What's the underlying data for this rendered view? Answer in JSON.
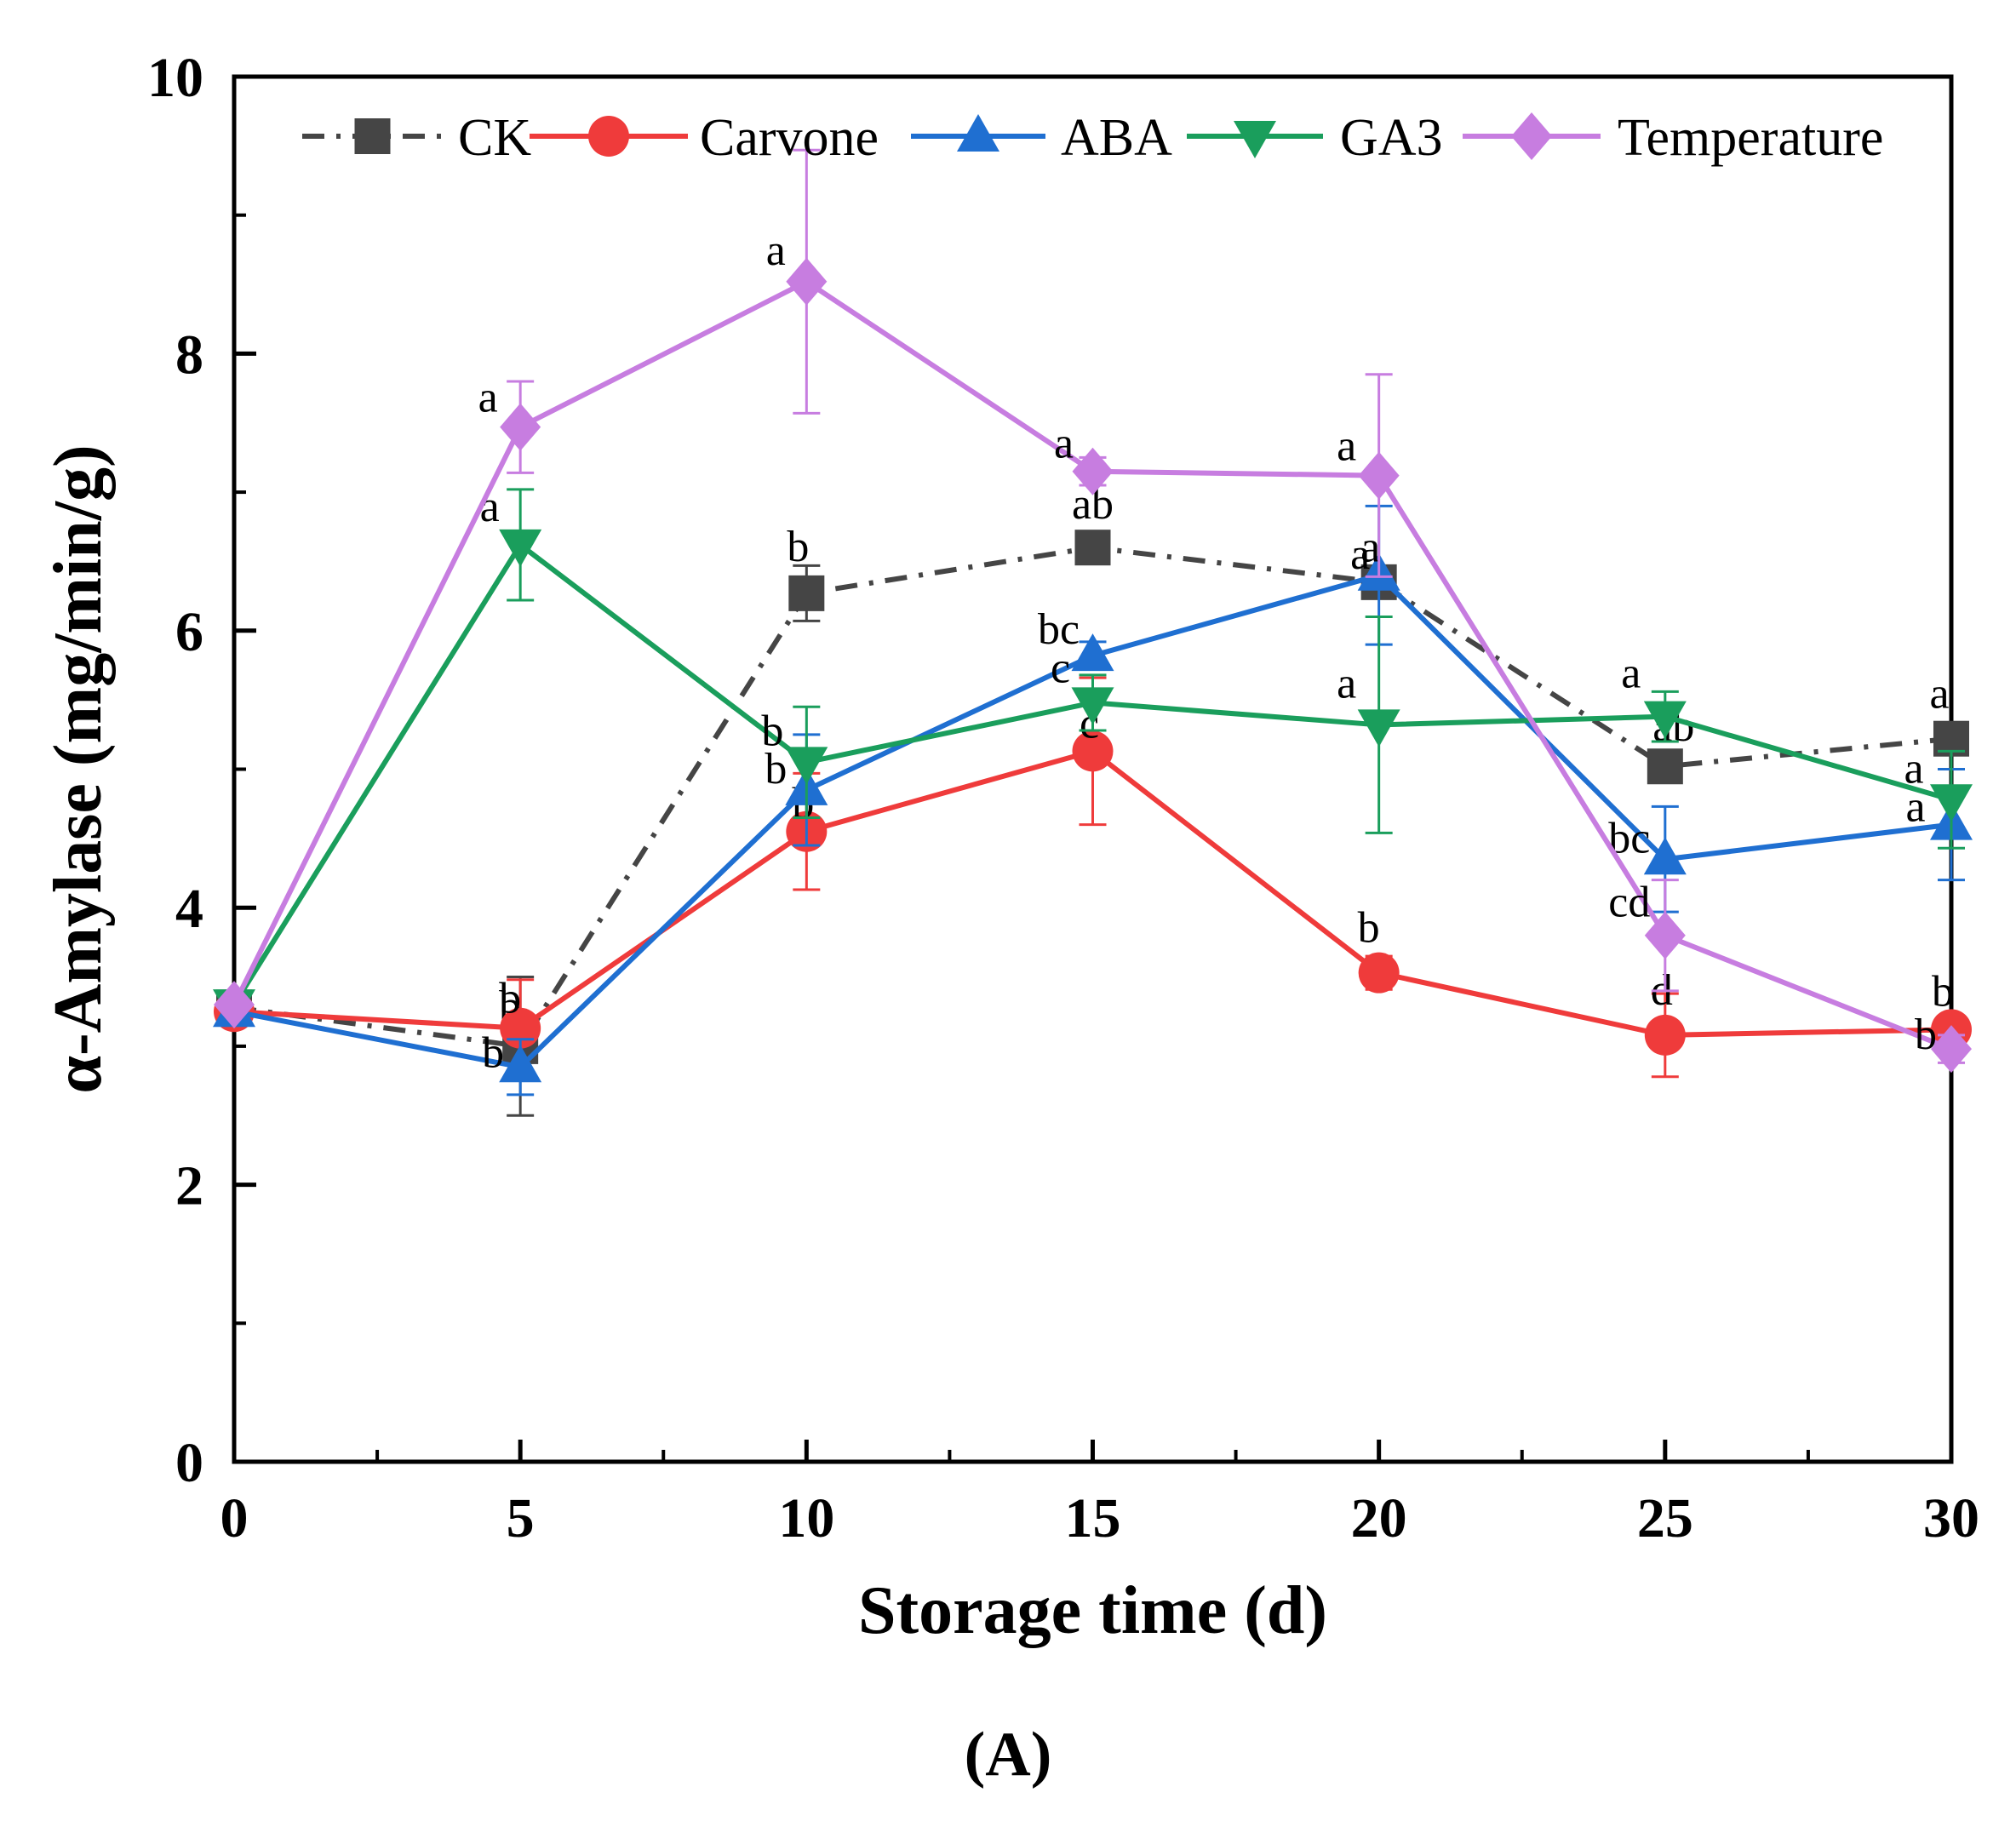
{
  "chart_data": {
    "type": "line",
    "xlabel": "Storage time (d)",
    "ylabel": "α-Amylase (mg/min/g)",
    "panel_label": "(A)",
    "xlim": [
      0,
      30
    ],
    "ylim": [
      0,
      10
    ],
    "x_ticks": [
      0,
      5,
      10,
      15,
      20,
      25,
      30
    ],
    "y_ticks": [
      0,
      2,
      4,
      6,
      8,
      10
    ],
    "x_tick_labels": [
      "0",
      "5",
      "10",
      "15",
      "20",
      "25",
      "30"
    ],
    "y_tick_labels": [
      "0",
      "2",
      "4",
      "6",
      "8",
      "10"
    ],
    "legend_position": "top",
    "series": [
      {
        "name": "CK",
        "color": "#454545",
        "dash": "dash-dot",
        "marker": "square",
        "x": [
          0,
          5,
          10,
          15,
          20,
          25,
          30
        ],
        "values": [
          3.28,
          3.0,
          6.27,
          6.6,
          6.35,
          5.02,
          5.22
        ],
        "errors": [
          0.05,
          0.5,
          0.2,
          0.1,
          0.05,
          0.1,
          0.1
        ],
        "labels": [
          "",
          "b",
          "b",
          "ab",
          "a",
          "ab",
          "a"
        ]
      },
      {
        "name": "Carvone",
        "color": "#ef3b3b",
        "dash": "solid",
        "marker": "circle",
        "x": [
          0,
          5,
          10,
          15,
          20,
          25,
          30
        ],
        "values": [
          3.25,
          3.13,
          4.55,
          5.13,
          3.53,
          3.08,
          3.12
        ],
        "errors": [
          0.05,
          0.35,
          0.42,
          0.53,
          0.12,
          0.3,
          0.1
        ],
        "labels": [
          "",
          "b",
          "b",
          "c",
          "b",
          "d",
          "b"
        ]
      },
      {
        "name": "ABA",
        "color": "#1f6fd1",
        "dash": "solid",
        "marker": "triangle-up",
        "x": [
          0,
          5,
          10,
          15,
          20,
          25,
          30
        ],
        "values": [
          3.25,
          2.85,
          4.85,
          5.82,
          6.4,
          4.35,
          4.6
        ],
        "errors": [
          0.05,
          0.2,
          0.4,
          0.1,
          0.5,
          0.38,
          0.4
        ],
        "labels": [
          "",
          "b",
          "b",
          "bc",
          "a",
          "bc",
          "a"
        ]
      },
      {
        "name": "GA3",
        "color": "#1a9e5c",
        "dash": "solid",
        "marker": "triangle-down",
        "x": [
          0,
          5,
          10,
          15,
          20,
          25,
          30
        ],
        "values": [
          3.3,
          6.62,
          5.05,
          5.48,
          5.32,
          5.38,
          4.78
        ],
        "errors": [
          0.05,
          0.4,
          0.4,
          0.2,
          0.78,
          0.18,
          0.35
        ],
        "labels": [
          "",
          "a",
          "b",
          "c",
          "a",
          "a",
          "a"
        ]
      },
      {
        "name": "Temperature",
        "color": "#c77de0",
        "dash": "solid",
        "marker": "diamond",
        "x": [
          0,
          5,
          10,
          15,
          20,
          25,
          30
        ],
        "values": [
          3.3,
          7.47,
          8.52,
          7.15,
          7.12,
          3.8,
          2.98
        ],
        "errors": [
          0.05,
          0.33,
          0.95,
          0.1,
          0.73,
          0.4,
          0.1
        ],
        "labels": [
          "",
          "a",
          "a",
          "a",
          "a",
          "cd",
          "b"
        ]
      }
    ]
  }
}
